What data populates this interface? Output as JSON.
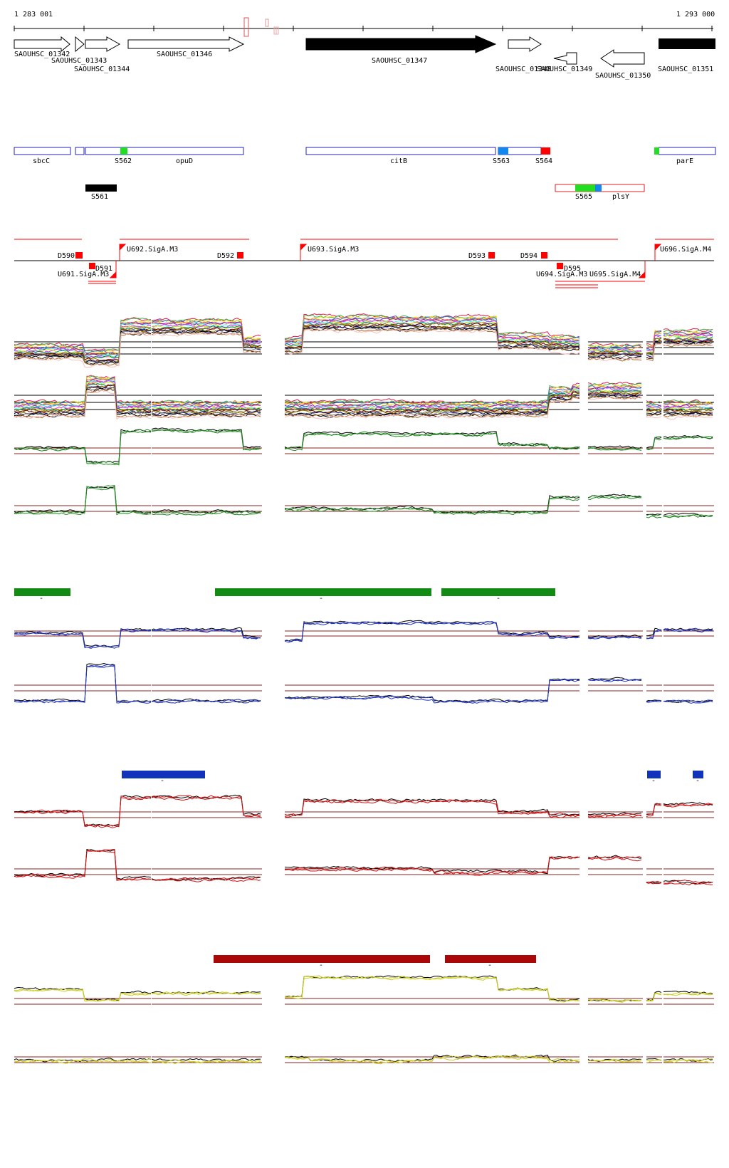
{
  "ruler": {
    "start_label": "1 283 001",
    "end_label": "1 293 000"
  },
  "genes": [
    {
      "id": "SAOUHSC_01342",
      "strand": "+",
      "fill": "none"
    },
    {
      "id": "SAOUHSC_01343",
      "strand": "+",
      "fill": "none"
    },
    {
      "id": "SAOUHSC_01344",
      "strand": "+",
      "fill": "none"
    },
    {
      "id": "SAOUHSC_01346",
      "strand": "+",
      "fill": "none"
    },
    {
      "id": "SAOUHSC_01347",
      "strand": "+",
      "fill": "#000000"
    },
    {
      "id": "SAOUHSC_01348",
      "strand": "+",
      "fill": "none"
    },
    {
      "id": "SAOUHSC_01349",
      "strand": "-",
      "fill": "none"
    },
    {
      "id": "SAOUHSC_01350",
      "strand": "-",
      "fill": "none"
    },
    {
      "id": "SAOUHSC_01351",
      "strand": "+",
      "fill": "#000000"
    }
  ],
  "annotations": [
    {
      "label": "sbcC"
    },
    {
      "label": "S562"
    },
    {
      "label": "opuD"
    },
    {
      "label": "citB"
    },
    {
      "label": "S563"
    },
    {
      "label": "S564"
    },
    {
      "label": "parE"
    },
    {
      "label": "S561"
    },
    {
      "label": "S565"
    },
    {
      "label": "plsY"
    }
  ],
  "segments": [
    {
      "label": "D590"
    },
    {
      "label": "D591"
    },
    {
      "label": "U691.SigA.M3"
    },
    {
      "label": "U692.SigA.M3"
    },
    {
      "label": "D592"
    },
    {
      "label": "U693.SigA.M3"
    },
    {
      "label": "D593"
    },
    {
      "label": "D594"
    },
    {
      "label": "D595"
    },
    {
      "label": "U694.SigA.M3"
    },
    {
      "label": "U695.SigA.M4"
    },
    {
      "label": "U696.SigA.M4"
    }
  ],
  "panel_labels": [
    "-",
    "-",
    "-",
    "-",
    "-",
    "-",
    "-",
    "-",
    "-",
    "-"
  ],
  "colors": {
    "green_bar": "#138a13",
    "blue_bar": "#1133bb",
    "darkred_bar": "#aa0808",
    "red_marker": "#ff0000",
    "light_blue_marker": "#1188ee",
    "green_marker": "#22dd22",
    "blue_box": "#2222bb",
    "ref_line": "#8b2020",
    "trace_green": "#228822",
    "trace_blue": "#2233bb",
    "trace_red": "#cc1111",
    "trace_yellow": "#cccc22"
  }
}
